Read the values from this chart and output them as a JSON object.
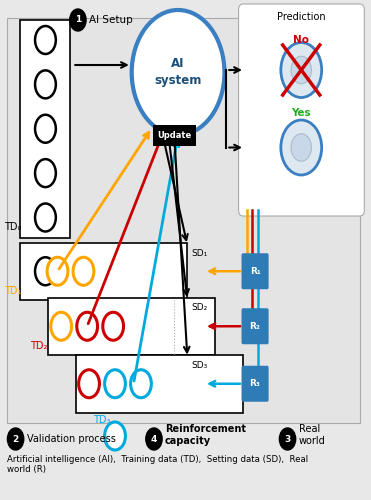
{
  "fig_width": 3.71,
  "fig_height": 5.0,
  "dpi": 100,
  "bg_color": "#e8e8e8",
  "white": "#ffffff",
  "title_text": "Prediction",
  "footer_text": "Artificial intelligence (AI),  Training data (TD),  Setting data (SD),  Real\nworld (R)",
  "label_1": "AI Setup",
  "label_2": "Validation process",
  "label_3": "Real\nworld",
  "label_4": "Reinforcement\ncapacity",
  "update_text": "Update",
  "ai_text": "AI\nsystem",
  "no_text": "No",
  "yes_text": "Yes",
  "SD1": "SD₁",
  "SD2": "SD₂",
  "SD3": "SD₃",
  "TD0": "TD₀",
  "TD1": "TD₁",
  "TD2": "TD₂",
  "TD3": "TD₃",
  "R1": "R₁",
  "R2": "R₂",
  "R3": "R₃",
  "color_black": "#000000",
  "color_yellow": "#FFA500",
  "color_red": "#CC0000",
  "color_cyan": "#00AADD",
  "color_blue_dark": "#1a4f7a",
  "color_blue_circle": "#3a7fc1",
  "color_blue_box": "#2e7bb5",
  "color_white": "#ffffff",
  "color_gray_panel": "#dde3ea"
}
